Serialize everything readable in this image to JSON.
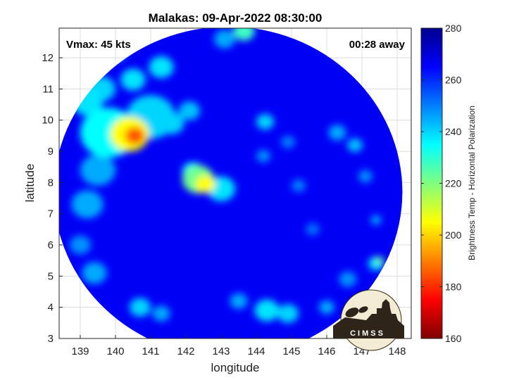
{
  "chart_data": {
    "type": "heatmap",
    "title": "Malakas: 09-Apr-2022 08:30:00",
    "annotations": {
      "vmax": "Vmax: 45 kts",
      "time_away": "00:28 away"
    },
    "xlabel": "longitude",
    "ylabel": "latitude",
    "xlim": [
      138.4,
      148.4
    ],
    "ylim": [
      3,
      12.95
    ],
    "x_ticks": [
      139,
      140,
      141,
      142,
      143,
      144,
      145,
      146,
      147,
      148
    ],
    "y_ticks": [
      3,
      4,
      5,
      6,
      7,
      8,
      9,
      10,
      11,
      12
    ],
    "grid": true,
    "swath": {
      "center_lon": 143.2,
      "center_lat": 7.7,
      "radius_lon": 4.95,
      "radius_lat": 5.3
    },
    "colorbar": {
      "label": "Brightness Temp - Horizontal Polarization",
      "min": 160,
      "max": 280,
      "ticks": [
        160,
        180,
        200,
        220,
        240,
        260,
        280
      ],
      "colormap": "jet"
    },
    "background_value": 266,
    "features": [
      {
        "lon": 140.55,
        "lat": 9.5,
        "value": 185,
        "radius": 0.28
      },
      {
        "lon": 140.4,
        "lat": 9.55,
        "value": 205,
        "radius": 0.55
      },
      {
        "lon": 139.8,
        "lat": 9.6,
        "value": 235,
        "radius": 0.8
      },
      {
        "lon": 141.0,
        "lat": 10.1,
        "value": 240,
        "radius": 0.7
      },
      {
        "lon": 139.2,
        "lat": 10.6,
        "value": 238,
        "radius": 0.45
      },
      {
        "lon": 139.6,
        "lat": 11.0,
        "value": 240,
        "radius": 0.4
      },
      {
        "lon": 140.5,
        "lat": 11.3,
        "value": 238,
        "radius": 0.35
      },
      {
        "lon": 141.3,
        "lat": 11.7,
        "value": 238,
        "radius": 0.35
      },
      {
        "lon": 140.0,
        "lat": 12.2,
        "value": 238,
        "radius": 0.3
      },
      {
        "lon": 139.5,
        "lat": 8.4,
        "value": 245,
        "radius": 0.5
      },
      {
        "lon": 139.2,
        "lat": 7.3,
        "value": 245,
        "radius": 0.45
      },
      {
        "lon": 141.6,
        "lat": 9.9,
        "value": 240,
        "radius": 0.35
      },
      {
        "lon": 142.1,
        "lat": 10.3,
        "value": 242,
        "radius": 0.3
      },
      {
        "lon": 142.55,
        "lat": 7.95,
        "value": 205,
        "radius": 0.28
      },
      {
        "lon": 142.35,
        "lat": 8.1,
        "value": 222,
        "radius": 0.45
      },
      {
        "lon": 143.0,
        "lat": 7.8,
        "value": 238,
        "radius": 0.4
      },
      {
        "lon": 142.2,
        "lat": 8.35,
        "value": 235,
        "radius": 0.3
      },
      {
        "lon": 143.65,
        "lat": 12.85,
        "value": 228,
        "radius": 0.3
      },
      {
        "lon": 143.1,
        "lat": 12.6,
        "value": 245,
        "radius": 0.3
      },
      {
        "lon": 144.25,
        "lat": 9.95,
        "value": 240,
        "radius": 0.25
      },
      {
        "lon": 144.2,
        "lat": 8.85,
        "value": 248,
        "radius": 0.2
      },
      {
        "lon": 144.9,
        "lat": 9.3,
        "value": 250,
        "radius": 0.2
      },
      {
        "lon": 146.3,
        "lat": 9.6,
        "value": 245,
        "radius": 0.25
      },
      {
        "lon": 146.8,
        "lat": 9.2,
        "value": 242,
        "radius": 0.22
      },
      {
        "lon": 147.1,
        "lat": 8.2,
        "value": 248,
        "radius": 0.2
      },
      {
        "lon": 147.4,
        "lat": 6.8,
        "value": 245,
        "radius": 0.15
      },
      {
        "lon": 147.5,
        "lat": 5.5,
        "value": 222,
        "radius": 0.12
      },
      {
        "lon": 147.4,
        "lat": 5.4,
        "value": 238,
        "radius": 0.22
      },
      {
        "lon": 146.6,
        "lat": 4.9,
        "value": 248,
        "radius": 0.25
      },
      {
        "lon": 145.2,
        "lat": 7.9,
        "value": 250,
        "radius": 0.2
      },
      {
        "lon": 144.3,
        "lat": 3.9,
        "value": 238,
        "radius": 0.35
      },
      {
        "lon": 144.9,
        "lat": 3.8,
        "value": 240,
        "radius": 0.3
      },
      {
        "lon": 143.5,
        "lat": 4.2,
        "value": 245,
        "radius": 0.25
      },
      {
        "lon": 140.7,
        "lat": 4.0,
        "value": 240,
        "radius": 0.3
      },
      {
        "lon": 141.3,
        "lat": 3.8,
        "value": 245,
        "radius": 0.25
      },
      {
        "lon": 139.4,
        "lat": 5.1,
        "value": 245,
        "radius": 0.35
      },
      {
        "lon": 139.0,
        "lat": 6.0,
        "value": 248,
        "radius": 0.3
      },
      {
        "lon": 146.0,
        "lat": 4.0,
        "value": 245,
        "radius": 0.22
      },
      {
        "lon": 145.6,
        "lat": 6.5,
        "value": 252,
        "radius": 0.2
      }
    ]
  },
  "logo": {
    "text": "CIMSS"
  }
}
